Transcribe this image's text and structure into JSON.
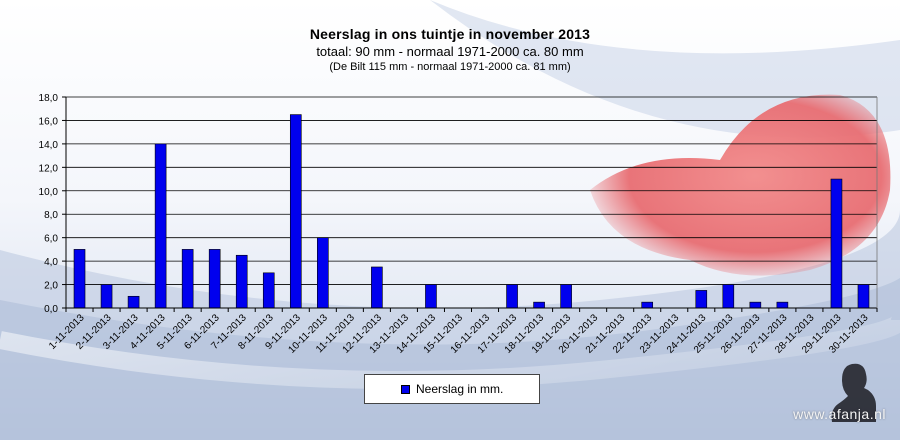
{
  "title": "Neerslag  in ons  tuintje  in november 2013",
  "subtitle": "totaal: 90  mm  - normaal  1971-2000  ca. 80 mm",
  "subsubtitle": "(De Bilt 115 mm - normaal 1971-2000 ca. 81 mm)",
  "watermark": "www.afanja.nl",
  "colors": {
    "bar": "#0000ee",
    "axis": "#000000",
    "grid": "#000000"
  },
  "chart_data": {
    "type": "bar",
    "title": "Neerslag  in ons  tuintje  in november 2013",
    "xlabel": "",
    "ylabel": "",
    "ylim": [
      0,
      18
    ],
    "yticks": [
      "0,0",
      "2,0",
      "4,0",
      "6,0",
      "8,0",
      "10,0",
      "12,0",
      "14,0",
      "16,0",
      "18,0"
    ],
    "categories": [
      "1-11-2013",
      "2-11-2013",
      "3-11-2013",
      "4-11-2013",
      "5-11-2013",
      "6-11-2013",
      "7-11-2013",
      "8-11-2013",
      "9-11-2013",
      "10-11-2013",
      "11-11-2013",
      "12-11-2013",
      "13-11-2013",
      "14-11-2013",
      "15-11-2013",
      "16-11-2013",
      "17-11-2013",
      "18-11-2013",
      "19-11-2013",
      "20-11-2013",
      "21-11-2013",
      "22-11-2013",
      "23-11-2013",
      "24-11-2013",
      "25-11-2013",
      "26-11-2013",
      "27-11-2013",
      "28-11-2013",
      "29-11-2013",
      "30-11-2013"
    ],
    "series": [
      {
        "name": "Neerslag in mm.",
        "values": [
          5,
          2,
          1,
          14,
          5,
          5,
          4.5,
          3,
          16.5,
          6,
          0,
          3.5,
          0,
          2,
          0,
          0,
          2,
          0.5,
          2,
          0,
          0,
          0.5,
          0,
          1.5,
          2,
          0.5,
          0.5,
          0,
          11,
          2
        ]
      }
    ],
    "legend": "bottom-center",
    "grid": true
  }
}
